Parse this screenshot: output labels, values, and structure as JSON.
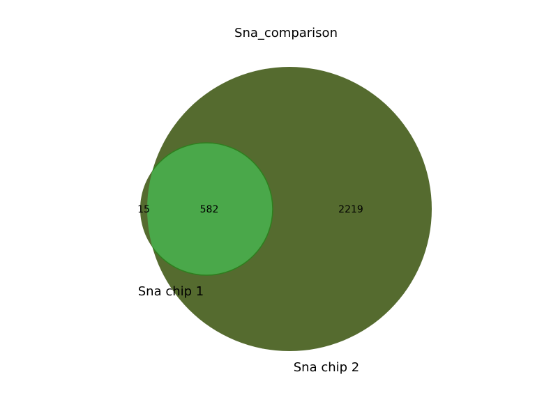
{
  "title": "Sna_comparison",
  "sets": [
    {
      "name": "Sna chip 1",
      "color": "#4aa84a",
      "edge": "#2f7f1f"
    },
    {
      "name": "Sna chip 2",
      "color": "#556b2f",
      "edge": "#556b2f"
    }
  ],
  "regions": {
    "only_chip1": "15",
    "both": "582",
    "only_chip2": "2219"
  }
}
